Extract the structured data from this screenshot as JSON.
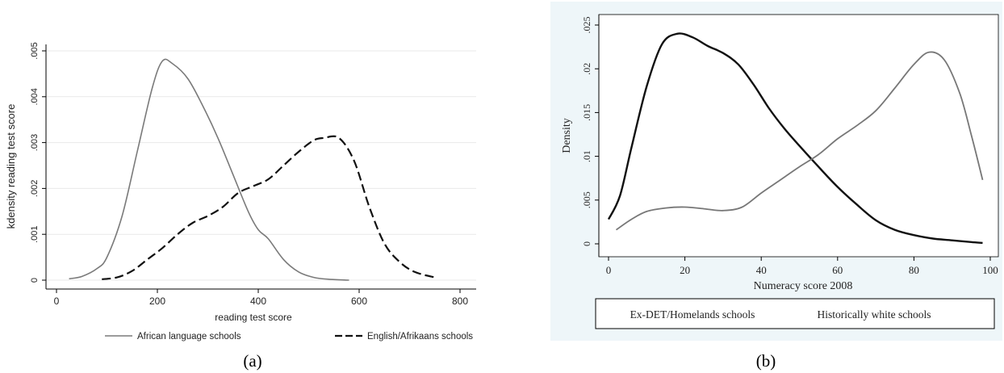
{
  "panels": {
    "a": {
      "caption": "(a)"
    },
    "b": {
      "caption": "(b)"
    }
  },
  "chart_data": [
    {
      "type": "line",
      "xlabel": "reading test score",
      "ylabel": "kdensity reading test score",
      "xlim": [
        0,
        800
      ],
      "ylim": [
        0,
        0.005
      ],
      "xticks": [
        0,
        200,
        400,
        600,
        800
      ],
      "xtick_labels": [
        "0",
        "200",
        "400",
        "600",
        "800"
      ],
      "yticks": [
        0,
        0.001,
        0.002,
        0.003,
        0.004,
        0.005
      ],
      "ytick_labels": [
        "0",
        ".001",
        ".002",
        ".003",
        ".004",
        ".005"
      ],
      "grid": "horizontal",
      "legend": "bottom",
      "series": [
        {
          "name": "African language schools",
          "style": "solid",
          "color": "#7a7a7a",
          "x": [
            25,
            50,
            80,
            100,
            130,
            160,
            190,
            210,
            230,
            260,
            290,
            320,
            350,
            380,
            400,
            420,
            450,
            480,
            510,
            540,
            580
          ],
          "y": [
            3e-05,
            8e-05,
            0.00025,
            0.0005,
            0.0014,
            0.0028,
            0.0042,
            0.00478,
            0.00472,
            0.0044,
            0.0038,
            0.0031,
            0.0023,
            0.0015,
            0.0011,
            0.0009,
            0.00045,
            0.00018,
            6e-05,
            2e-05,
            0.0
          ]
        },
        {
          "name": "English/Afrikaans schools",
          "style": "dash",
          "color": "#111111",
          "x": [
            90,
            120,
            150,
            180,
            210,
            240,
            270,
            300,
            330,
            360,
            390,
            420,
            450,
            480,
            510,
            530,
            560,
            590,
            620,
            650,
            680,
            710,
            750
          ],
          "y": [
            2e-05,
            6e-05,
            0.0002,
            0.00045,
            0.0007,
            0.001,
            0.00125,
            0.0014,
            0.0016,
            0.0019,
            0.00205,
            0.0022,
            0.0025,
            0.0028,
            0.00305,
            0.0031,
            0.0031,
            0.0026,
            0.0016,
            0.0008,
            0.0004,
            0.00018,
            6e-05
          ]
        }
      ]
    },
    {
      "type": "line",
      "xlabel": "Numeracy score 2008",
      "ylabel": "Density",
      "xlim": [
        0,
        100
      ],
      "ylim": [
        0,
        0.025
      ],
      "xticks": [
        0,
        20,
        40,
        60,
        80,
        100
      ],
      "xtick_labels": [
        "0",
        "20",
        "40",
        "60",
        "80",
        "100"
      ],
      "yticks": [
        0,
        0.005,
        0.01,
        0.015,
        0.02,
        0.025
      ],
      "ytick_labels": [
        "0",
        ".005",
        ".01",
        ".015",
        ".02",
        ".025"
      ],
      "grid": "none",
      "legend": "bottom",
      "background": "#eef6f9",
      "series": [
        {
          "name": "Ex-DET/Homelands schools",
          "style": "solid",
          "color": "#111111",
          "x": [
            0,
            3,
            6,
            10,
            14,
            18,
            22,
            26,
            30,
            34,
            38,
            42,
            46,
            50,
            55,
            60,
            65,
            70,
            75,
            80,
            85,
            90,
            95,
            98
          ],
          "y": [
            0.0028,
            0.0055,
            0.011,
            0.018,
            0.0228,
            0.024,
            0.0236,
            0.0226,
            0.0218,
            0.0205,
            0.0182,
            0.0155,
            0.0132,
            0.0112,
            0.0088,
            0.0065,
            0.0045,
            0.0027,
            0.0016,
            0.001,
            0.0006,
            0.0004,
            0.0002,
            0.0001
          ]
        },
        {
          "name": "Historically white schools",
          "style": "solid",
          "color": "#777777",
          "x": [
            2,
            6,
            10,
            15,
            20,
            25,
            30,
            35,
            40,
            45,
            50,
            55,
            60,
            65,
            70,
            75,
            80,
            84,
            88,
            92,
            95,
            98
          ],
          "y": [
            0.0016,
            0.0028,
            0.0037,
            0.0041,
            0.0042,
            0.004,
            0.0038,
            0.0042,
            0.0058,
            0.0073,
            0.0088,
            0.0102,
            0.012,
            0.0135,
            0.0152,
            0.0178,
            0.0205,
            0.0219,
            0.021,
            0.0172,
            0.0125,
            0.0073
          ]
        }
      ]
    }
  ]
}
